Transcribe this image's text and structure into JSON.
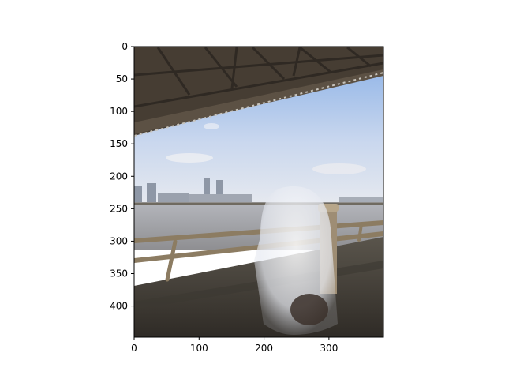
{
  "chart_data": {
    "type": "image",
    "title": "",
    "xlabel": "",
    "ylabel": "",
    "xlim": [
      0,
      384
    ],
    "ylim": [
      448,
      0
    ],
    "xticks": [
      0,
      100,
      200,
      300
    ],
    "yticks": [
      0,
      50,
      100,
      150,
      200,
      250,
      300,
      350,
      400
    ],
    "image_description": "Photo under a steel truss bridge by a river: a blurred, translucent white ghost-like figure stands behind a metal railing on the riverside walkway, with a city skyline and twin towers across the water under a blue sky."
  },
  "colors": {
    "sky_top": "#8fb4e6",
    "sky_bottom": "#dfe6f0",
    "bridge": "#4a4136",
    "water": "#a7aab0",
    "walkway": "#4b4740",
    "railing": "#9a8a70",
    "figure": "#eef0f4"
  }
}
